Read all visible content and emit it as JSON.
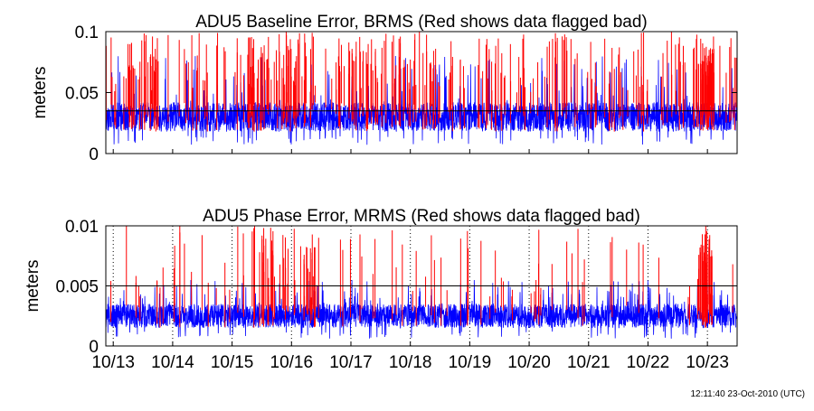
{
  "timestamp": "12:11:40 23-Oct-2010 (UTC)",
  "colors": {
    "good": "#0000ff",
    "bad": "#ff0000",
    "threshold": "#000000",
    "grid": "#000000"
  },
  "chart_data": [
    {
      "type": "line",
      "title": "ADU5 Baseline Error, BRMS (Red shows data flagged bad)",
      "xlabel": "",
      "ylabel": "meters",
      "xlim": [
        "2010-10-12T21:00",
        "2010-10-23T12:00"
      ],
      "ylim": [
        0,
        0.1
      ],
      "yticks": [
        "0",
        "0.05",
        "0.1"
      ],
      "threshold": 0.035,
      "grid": "none",
      "series": [
        {
          "name": "",
          "color": "#0000ff",
          "band": [
            0.018,
            0.042
          ],
          "spikes_to": 0.08,
          "points": 3000,
          "seed": 11
        },
        {
          "name": "",
          "color": "#ff0000",
          "spike_count": 260,
          "spike_min": 0.05,
          "spike_max": 0.1,
          "seed": 23,
          "dense_periods": [
            [
              "2010-10-15T06:00",
              "2010-10-16T06:00"
            ],
            [
              "2010-10-16T18:00",
              "2010-10-18T12:00"
            ],
            [
              "2010-10-22T20:00",
              "2010-10-23T03:00"
            ]
          ]
        }
      ]
    },
    {
      "type": "line",
      "title": "ADU5 Phase Error, MRMS (Red shows data flagged bad)",
      "xlabel": "",
      "ylabel": "meters",
      "xlim": [
        "2010-10-12T21:00",
        "2010-10-23T12:00"
      ],
      "ylim": [
        0,
        0.01
      ],
      "yticks": [
        "0",
        "0.005",
        "0.01"
      ],
      "xticks": [
        "10/13",
        "10/14",
        "10/15",
        "10/16",
        "10/17",
        "10/18",
        "10/19",
        "10/20",
        "10/21",
        "10/22",
        "10/23"
      ],
      "xtick_dates": [
        "2010-10-13",
        "2010-10-14",
        "2010-10-15",
        "2010-10-16",
        "2010-10-17",
        "2010-10-18",
        "2010-10-19",
        "2010-10-20",
        "2010-10-21",
        "2010-10-22",
        "2010-10-23"
      ],
      "threshold": 0.005,
      "grid": "x-dotted",
      "series": [
        {
          "name": "",
          "color": "#0000ff",
          "band": [
            0.0015,
            0.0035
          ],
          "spikes_to": 0.0055,
          "points": 3000,
          "seed": 37
        },
        {
          "name": "",
          "color": "#ff0000",
          "spike_count": 90,
          "spike_min": 0.004,
          "spike_max": 0.01,
          "seed": 53,
          "dense_periods": [
            [
              "2010-10-15T10:00",
              "2010-10-16T12:00"
            ],
            [
              "2010-10-22T20:00",
              "2010-10-23T02:00"
            ]
          ]
        }
      ]
    }
  ]
}
